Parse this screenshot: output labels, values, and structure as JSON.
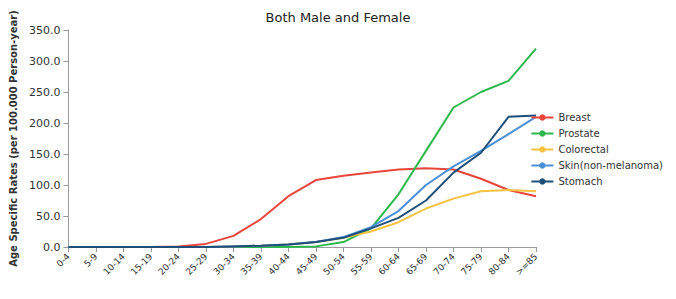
{
  "chart_data": {
    "type": "line",
    "title": "Both Male and Female",
    "y_label": "Age Specific Rates (per 100.000 Person-year)",
    "categories": [
      "0-4",
      "5-9",
      "10-14",
      "15-19",
      "20-24",
      "25-29",
      "30-34",
      "35-39",
      "40-44",
      "45-49",
      "50-54",
      "55-59",
      "60-64",
      "65-69",
      "70-74",
      "75-79",
      "80-84",
      ">=85"
    ],
    "series": [
      {
        "name": "Breast",
        "color": "#e8453c",
        "values": [
          0,
          0,
          0,
          0,
          1,
          5,
          18,
          45,
          82,
          108,
          115,
          120,
          125,
          127,
          125,
          110,
          92,
          82
        ]
      },
      {
        "name": "Prostate",
        "color": "#2db84d",
        "values": [
          0,
          0,
          0,
          0,
          0,
          0,
          0,
          0,
          0,
          1,
          8,
          30,
          85,
          155,
          225,
          250,
          268,
          320
        ]
      },
      {
        "name": "Colorectal",
        "color": "#f5c242",
        "values": [
          0,
          0,
          0,
          0,
          0,
          0,
          1,
          2,
          4,
          8,
          15,
          25,
          40,
          62,
          78,
          90,
          92,
          90
        ]
      },
      {
        "name": "Skin(non-melanoma)",
        "color": "#4a90d9",
        "values": [
          0,
          0,
          0,
          0,
          0,
          0,
          1,
          2,
          4,
          8,
          16,
          32,
          58,
          100,
          130,
          155,
          182,
          210
        ]
      },
      {
        "name": "Stomach",
        "color": "#1f4e79",
        "values": [
          0,
          0,
          0,
          0,
          0,
          0,
          1,
          2,
          4,
          8,
          15,
          30,
          47,
          75,
          120,
          152,
          210,
          212
        ]
      }
    ],
    "ylim": [
      0,
      350
    ],
    "yticks": [
      {
        "value": 0,
        "label": "0.0"
      },
      {
        "value": 50,
        "label": "50.0"
      },
      {
        "value": 100,
        "label": "100.0"
      },
      {
        "value": 150,
        "label": "150.0"
      },
      {
        "value": 200,
        "label": "200.0"
      },
      {
        "value": 250,
        "label": "250.0"
      },
      {
        "value": 300,
        "label": "300.0"
      },
      {
        "value": 350,
        "label": "350.0"
      }
    ],
    "grid": false,
    "legend": "right"
  }
}
